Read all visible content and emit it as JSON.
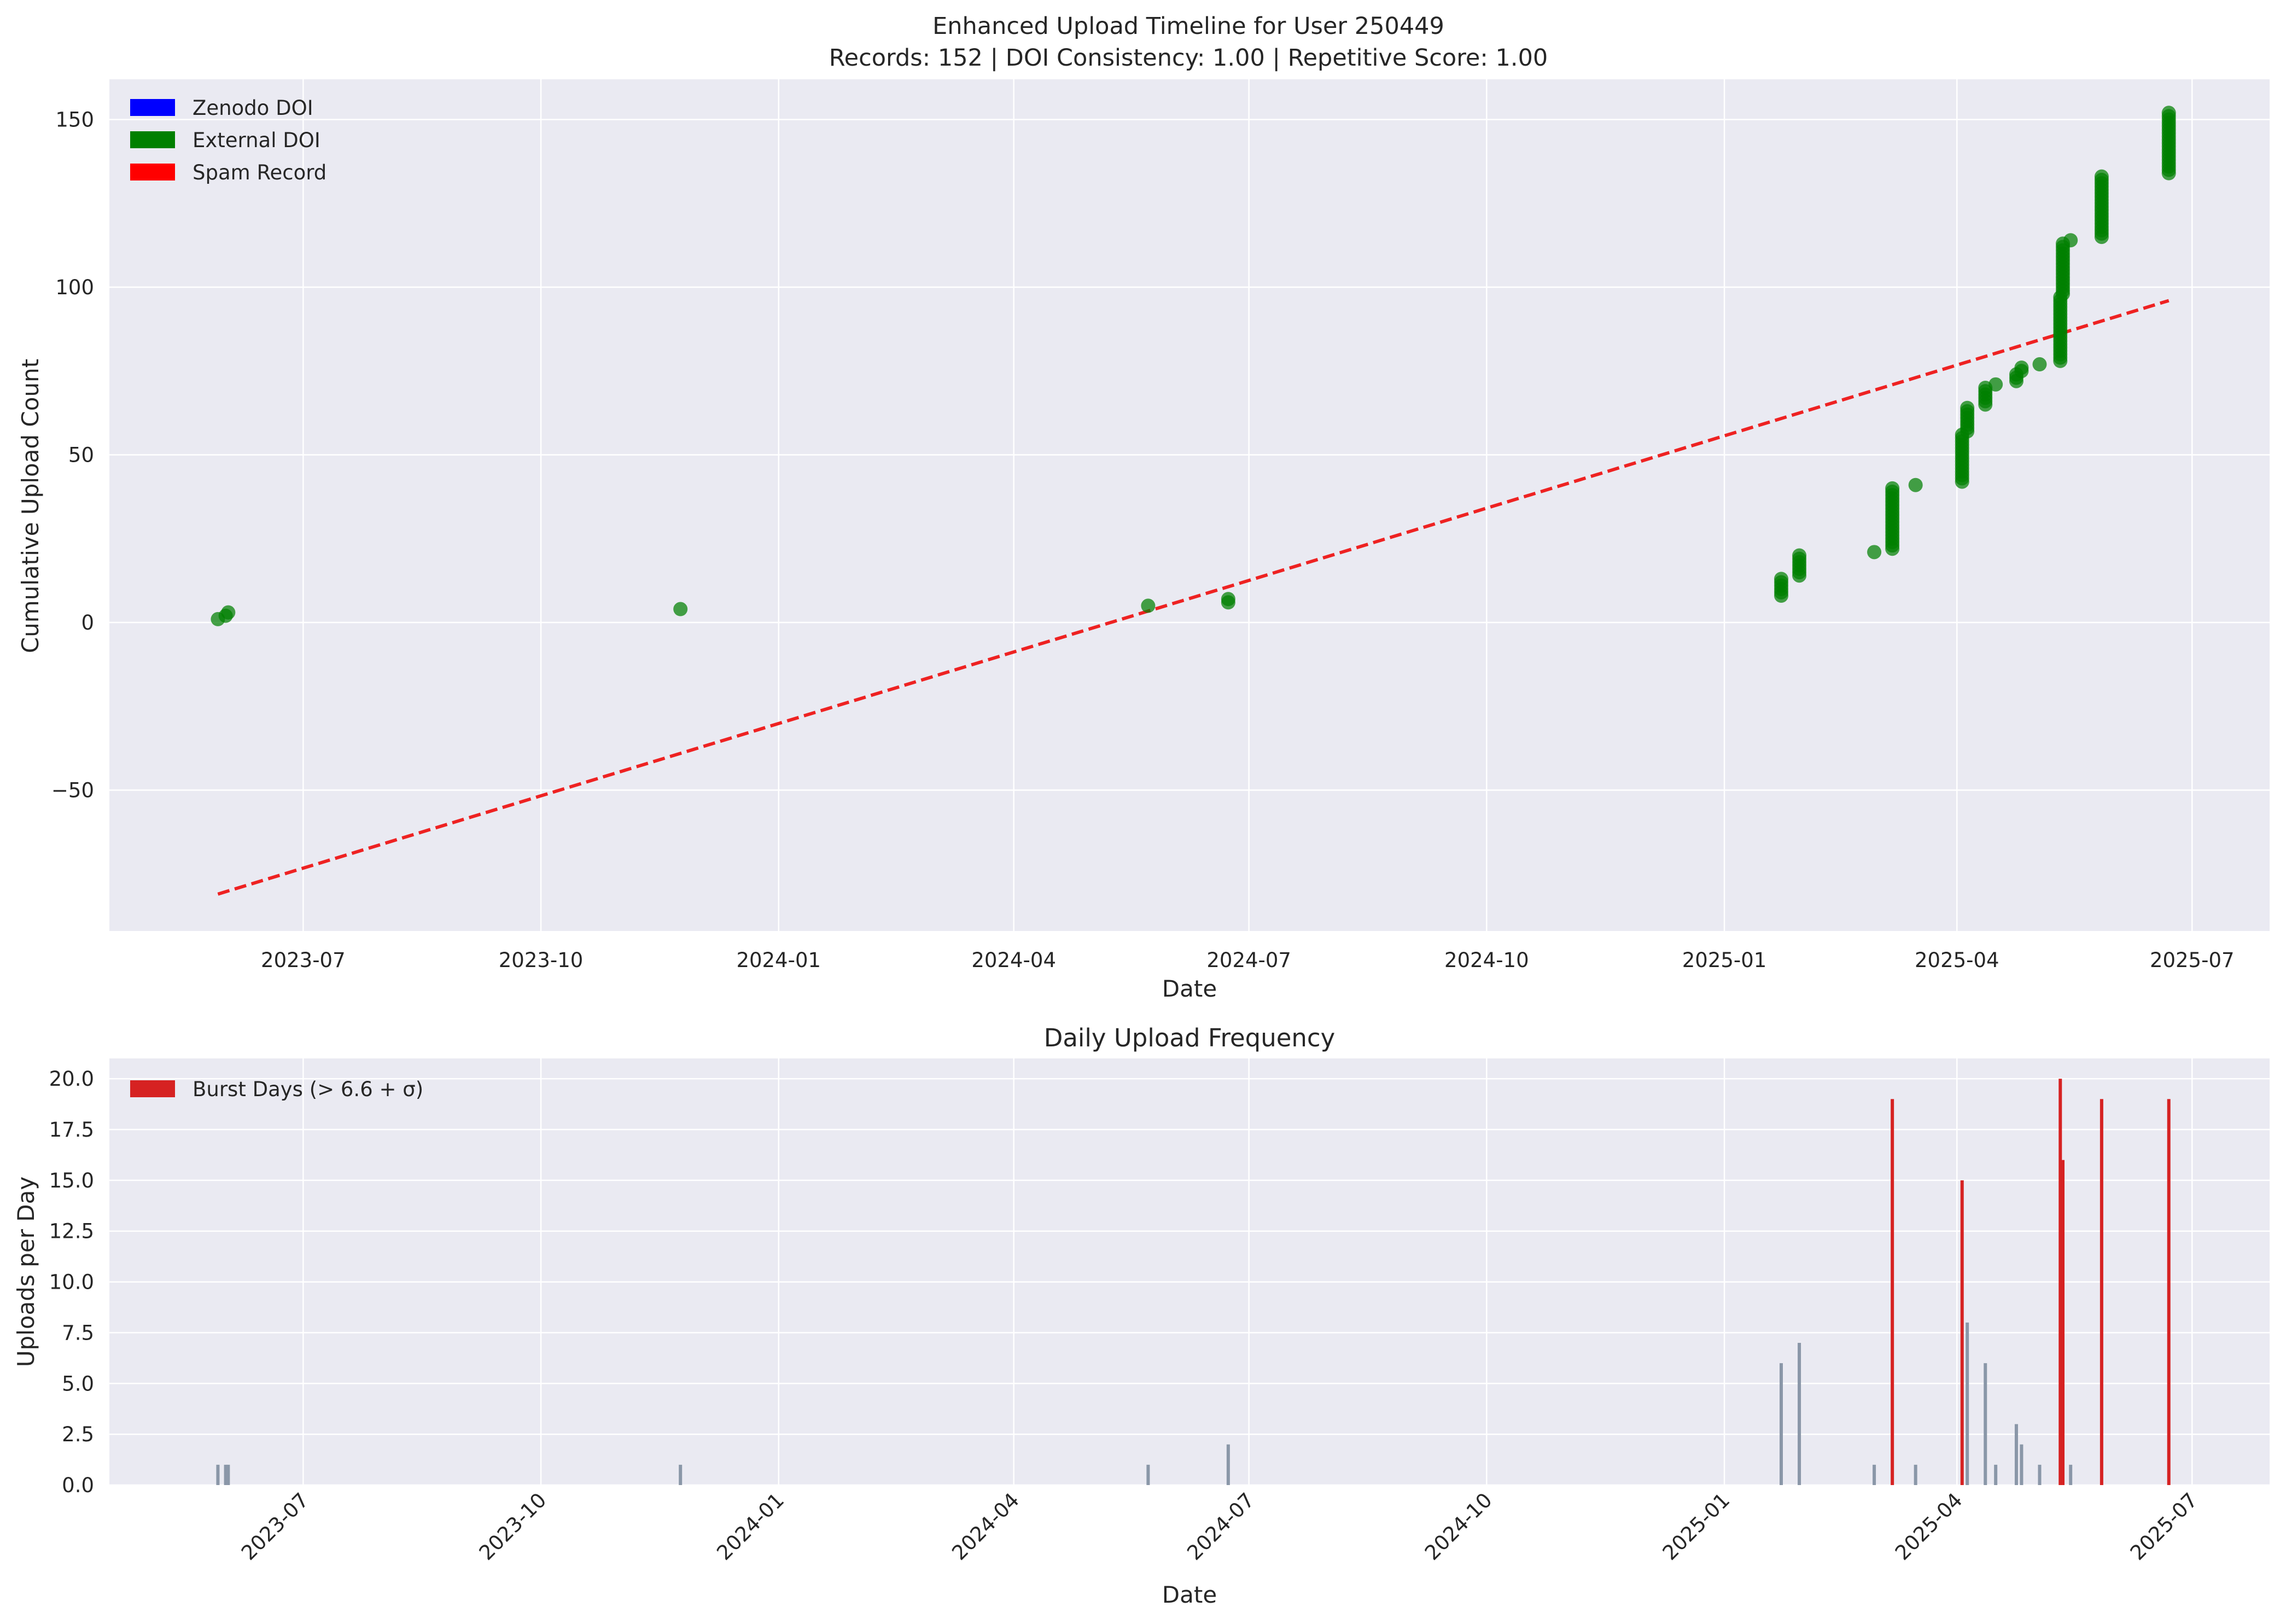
{
  "figure": {
    "title_line1": "Enhanced Upload Timeline for User 250449",
    "title_line2": "Records: 152 | DOI Consistency: 1.00 | Repetitive Score: 1.00"
  },
  "colors": {
    "plot_bg": "#eaeaf2",
    "grid": "#ffffff",
    "external_doi": "#008000",
    "zenodo_doi": "#0000ff",
    "spam": "#ff0000",
    "trend": "#ee2222",
    "normal_bar": "#8a97a8",
    "burst_bar": "#d62222"
  },
  "chart_data": [
    {
      "type": "scatter",
      "title": "",
      "xlabel": "Date",
      "ylabel": "Cumulative Upload Count",
      "x_axis": "date",
      "xlim": [
        "2023-04-17",
        "2025-07-31"
      ],
      "ylim": [
        -92,
        162
      ],
      "x_ticks": [
        "2023-07-01",
        "2023-10-01",
        "2024-01-01",
        "2024-04-01",
        "2024-07-01",
        "2024-10-01",
        "2025-01-01",
        "2025-04-01",
        "2025-07-01"
      ],
      "x_tick_labels": [
        "2023-07",
        "2023-10",
        "2024-01",
        "2024-04",
        "2024-07",
        "2024-10",
        "2025-01",
        "2025-04",
        "2025-07"
      ],
      "y_ticks": [
        -50,
        0,
        50,
        100,
        150
      ],
      "y_tick_labels": [
        "−50",
        "0",
        "50",
        "100",
        "150"
      ],
      "grid": true,
      "legend_position": "top-left",
      "legend": [
        "Zenodo DOI",
        "External DOI",
        "Spam Record"
      ],
      "point_groups": [
        {
          "date": "2023-05-29",
          "from": 1,
          "to": 1
        },
        {
          "date": "2023-06-01",
          "from": 2,
          "to": 2
        },
        {
          "date": "2023-06-02",
          "from": 3,
          "to": 3
        },
        {
          "date": "2023-11-24",
          "from": 4,
          "to": 4
        },
        {
          "date": "2024-05-23",
          "from": 5,
          "to": 5
        },
        {
          "date": "2024-06-23",
          "from": 6,
          "to": 7
        },
        {
          "date": "2025-01-23",
          "from": 8,
          "to": 13
        },
        {
          "date": "2025-01-30",
          "from": 14,
          "to": 20
        },
        {
          "date": "2025-02-28",
          "from": 21,
          "to": 21
        },
        {
          "date": "2025-03-07",
          "from": 22,
          "to": 40
        },
        {
          "date": "2025-03-16",
          "from": 41,
          "to": 41
        },
        {
          "date": "2025-04-03",
          "from": 42,
          "to": 56
        },
        {
          "date": "2025-04-05",
          "from": 57,
          "to": 64
        },
        {
          "date": "2025-04-12",
          "from": 65,
          "to": 70
        },
        {
          "date": "2025-04-16",
          "from": 71,
          "to": 71
        },
        {
          "date": "2025-04-24",
          "from": 72,
          "to": 74
        },
        {
          "date": "2025-04-26",
          "from": 75,
          "to": 76
        },
        {
          "date": "2025-05-03",
          "from": 77,
          "to": 77
        },
        {
          "date": "2025-05-11",
          "from": 78,
          "to": 97
        },
        {
          "date": "2025-05-12",
          "from": 98,
          "to": 113
        },
        {
          "date": "2025-05-15",
          "from": 114,
          "to": 114
        },
        {
          "date": "2025-05-27",
          "from": 115,
          "to": 133
        },
        {
          "date": "2025-06-22",
          "from": 134,
          "to": 152
        }
      ],
      "trend_line": {
        "style": "dashed",
        "x": [
          "2023-05-29",
          "2025-06-22"
        ],
        "y": [
          -81,
          96
        ]
      }
    },
    {
      "type": "bar",
      "title": "Daily Upload Frequency",
      "xlabel": "Date",
      "ylabel": "Uploads per Day",
      "x_axis": "date",
      "xlim": [
        "2023-04-17",
        "2025-07-31"
      ],
      "ylim": [
        0,
        21
      ],
      "x_ticks": [
        "2023-07-01",
        "2023-10-01",
        "2024-01-01",
        "2024-04-01",
        "2024-07-01",
        "2024-10-01",
        "2025-01-01",
        "2025-04-01",
        "2025-07-01"
      ],
      "x_tick_labels": [
        "2023-07",
        "2023-10",
        "2024-01",
        "2024-04",
        "2024-07",
        "2024-10",
        "2025-01",
        "2025-04",
        "2025-07"
      ],
      "x_tick_rotation": 45,
      "y_ticks": [
        0,
        2.5,
        5,
        7.5,
        10,
        12.5,
        15,
        17.5,
        20
      ],
      "y_tick_labels": [
        "0.0",
        "2.5",
        "5.0",
        "7.5",
        "10.0",
        "12.5",
        "15.0",
        "17.5",
        "20.0"
      ],
      "grid": true,
      "legend_position": "top-left",
      "legend": [
        "Burst Days (> 6.6 + σ)"
      ],
      "bars": [
        {
          "date": "2023-05-29",
          "value": 1,
          "burst": false
        },
        {
          "date": "2023-06-01",
          "value": 1,
          "burst": false
        },
        {
          "date": "2023-06-02",
          "value": 1,
          "burst": false
        },
        {
          "date": "2023-11-24",
          "value": 1,
          "burst": false
        },
        {
          "date": "2024-05-23",
          "value": 1,
          "burst": false
        },
        {
          "date": "2024-06-23",
          "value": 2,
          "burst": false
        },
        {
          "date": "2025-01-23",
          "value": 6,
          "burst": false
        },
        {
          "date": "2025-01-30",
          "value": 7,
          "burst": false
        },
        {
          "date": "2025-02-28",
          "value": 1,
          "burst": false
        },
        {
          "date": "2025-03-07",
          "value": 19,
          "burst": true
        },
        {
          "date": "2025-03-16",
          "value": 1,
          "burst": false
        },
        {
          "date": "2025-04-03",
          "value": 15,
          "burst": true
        },
        {
          "date": "2025-04-05",
          "value": 8,
          "burst": false
        },
        {
          "date": "2025-04-12",
          "value": 6,
          "burst": false
        },
        {
          "date": "2025-04-16",
          "value": 1,
          "burst": false
        },
        {
          "date": "2025-04-24",
          "value": 3,
          "burst": false
        },
        {
          "date": "2025-04-26",
          "value": 2,
          "burst": false
        },
        {
          "date": "2025-05-03",
          "value": 1,
          "burst": false
        },
        {
          "date": "2025-05-11",
          "value": 20,
          "burst": true
        },
        {
          "date": "2025-05-12",
          "value": 16,
          "burst": true
        },
        {
          "date": "2025-05-15",
          "value": 1,
          "burst": false
        },
        {
          "date": "2025-05-27",
          "value": 19,
          "burst": true
        },
        {
          "date": "2025-06-22",
          "value": 19,
          "burst": true
        }
      ]
    }
  ]
}
